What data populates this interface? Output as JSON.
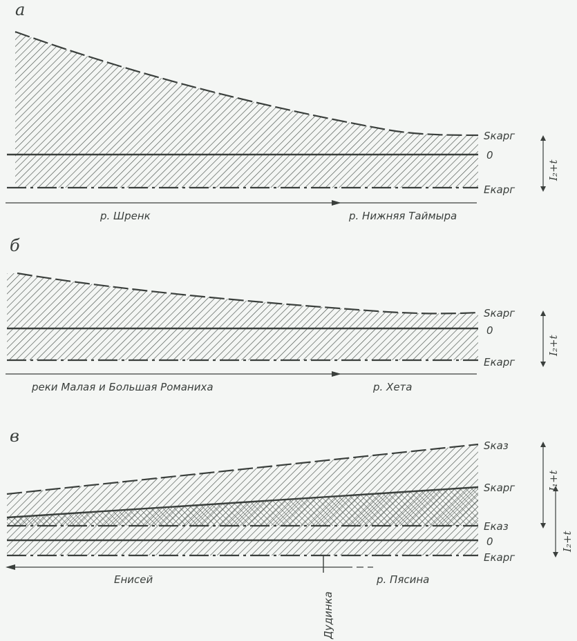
{
  "panels": [
    {
      "letter": "а",
      "labels": {
        "s_top": "Sкapг",
        "zero": "0",
        "e_bottom": "Eкapг",
        "bracket": "I₂+t"
      },
      "river_left": "р. Шренк",
      "river_right": "р. Нижняя Таймыра"
    },
    {
      "letter": "б",
      "labels": {
        "s_top": "Sкapг",
        "zero": "0",
        "e_bottom": "Eкapг",
        "bracket": "I₂+t"
      },
      "river_left": "реки Малая и Большая Романиха",
      "river_right": "р. Хета"
    },
    {
      "letter": "в",
      "labels": {
        "s_kaz": "Sказ",
        "s_karg": "Sкapг",
        "e_kaz": "Eказ",
        "zero": "0",
        "e_karg": "Eкapг",
        "bracket_top": "I₁+t",
        "bracket_bottom": "I₂+t"
      },
      "river_left": "Енисей",
      "river_right": "р. Пясина",
      "marker": "Дудинка"
    }
  ],
  "colors": {
    "ink": "#3a3f3c",
    "hatch": "#4a524d",
    "background": "#f4f6f4"
  }
}
